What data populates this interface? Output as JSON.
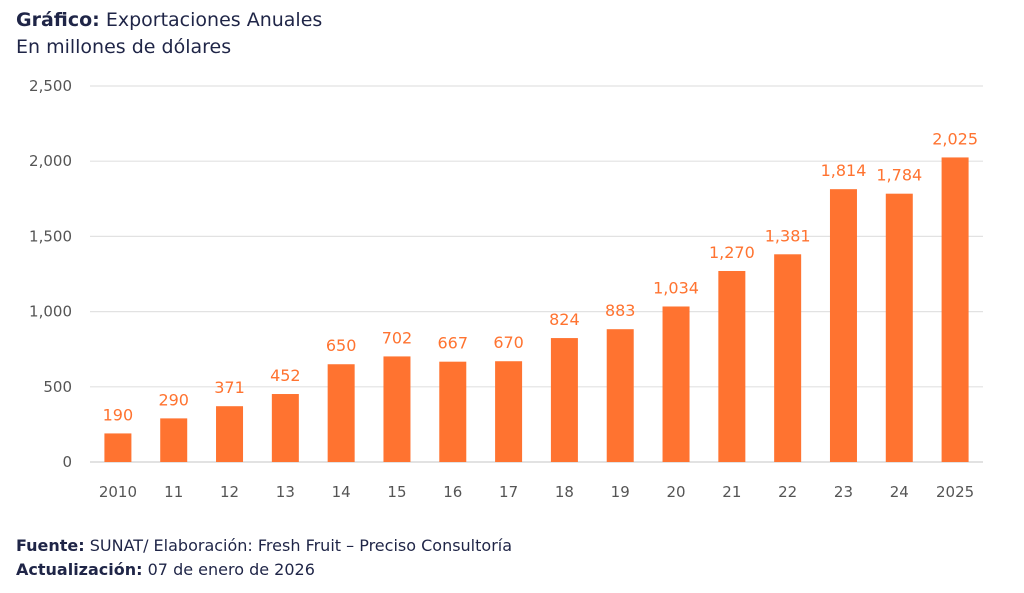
{
  "header": {
    "title_prefix": "Gráfico:",
    "title": "Exportaciones Anuales",
    "subtitle": "En millones de dólares"
  },
  "footer": {
    "source_label": "Fuente:",
    "source_text": "SUNAT/ Elaboración: Fresh Fruit – Preciso Consultoría",
    "update_label": "Actualización:",
    "update_text": "07 de enero de 2026"
  },
  "chart_data": {
    "type": "bar",
    "title": "Exportaciones Anuales",
    "subtitle": "En millones de dólares",
    "xlabel": "",
    "ylabel": "",
    "categories": [
      "2010",
      "11",
      "12",
      "13",
      "14",
      "15",
      "16",
      "17",
      "18",
      "19",
      "20",
      "21",
      "22",
      "23",
      "24",
      "2025"
    ],
    "values": [
      190,
      290,
      371,
      452,
      650,
      702,
      667,
      670,
      824,
      883,
      1034,
      1270,
      1381,
      1814,
      1784,
      2025
    ],
    "data_labels": [
      "190",
      "290",
      "371",
      "452",
      "650",
      "702",
      "667",
      "670",
      "824",
      "883",
      "1,034",
      "1,270",
      "1,381",
      "1,814",
      "1,784",
      "2,025"
    ],
    "ylim": [
      0,
      2500
    ],
    "yticks": [
      0,
      500,
      1000,
      1500,
      2000,
      2500
    ],
    "ytick_labels": [
      "0",
      "500",
      "1,000",
      "1,500",
      "2,000",
      "2,500"
    ],
    "grid": true,
    "legend": "none",
    "bar_color": "#ff7330"
  }
}
